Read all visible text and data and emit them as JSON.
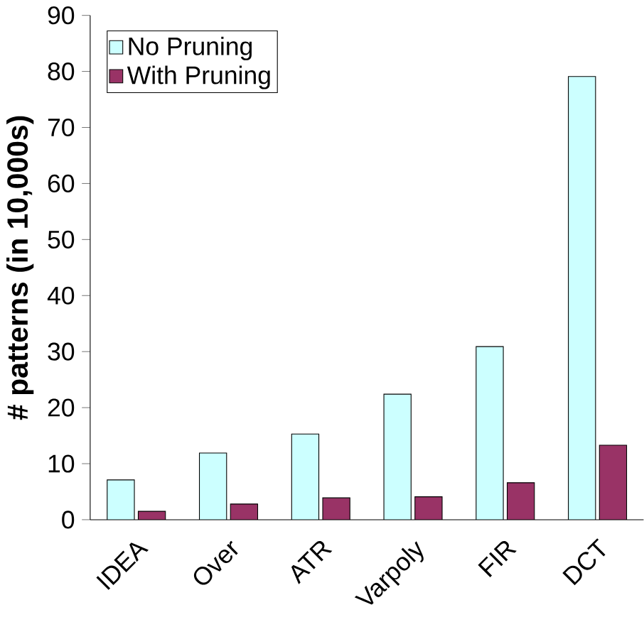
{
  "chart_data": {
    "type": "bar",
    "ylabel": "# patterns (in 10,000s)",
    "categories": [
      "IDEA",
      "Over",
      "ATR",
      "Varpoly",
      "FIR",
      "DCT"
    ],
    "series": [
      {
        "name": "No Pruning",
        "color": "#ccffff",
        "values": [
          7.1,
          11.9,
          15.3,
          22.4,
          30.9,
          79.1
        ]
      },
      {
        "name": "With Pruning",
        "color": "#993366",
        "values": [
          1.5,
          2.8,
          3.9,
          4.1,
          6.6,
          13.3
        ]
      }
    ],
    "ylim": [
      0,
      90
    ],
    "yticks": [
      0,
      10,
      20,
      30,
      40,
      50,
      60,
      70,
      80,
      90
    ],
    "legend": "top left",
    "grid": false
  }
}
